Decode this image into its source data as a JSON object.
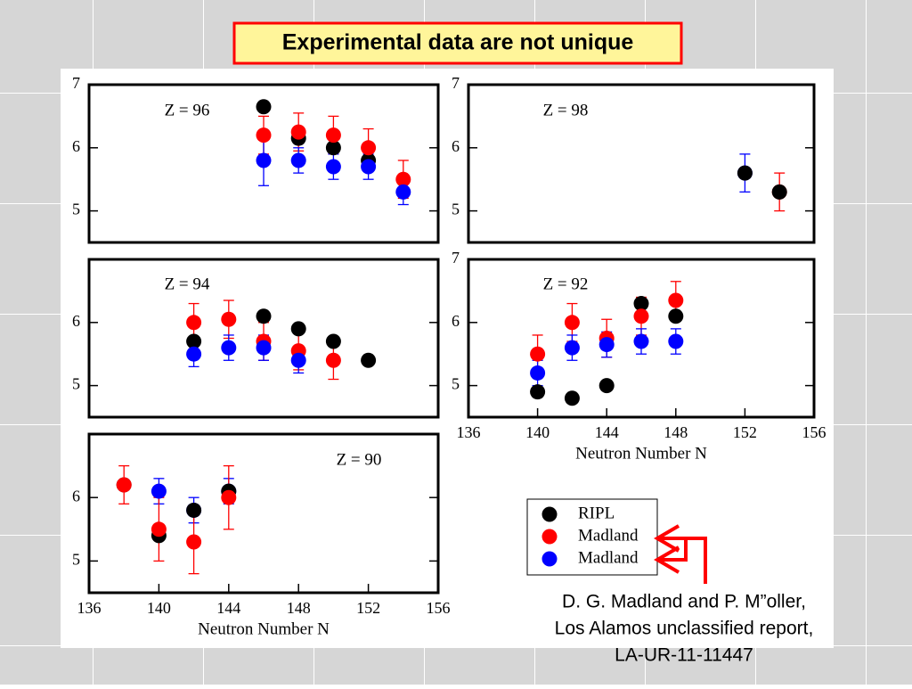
{
  "title": "Experimental data are not unique",
  "chart_data": [
    {
      "type": "scatter",
      "title": "Z = 96",
      "xlim": [
        136,
        156
      ],
      "ylim": [
        4.5,
        7
      ],
      "yticks": [
        5,
        6,
        7
      ],
      "series": [
        {
          "color": "#000000",
          "x": [
            146,
            148,
            150,
            152
          ],
          "values": [
            6.65,
            6.15,
            6.0,
            5.8
          ]
        },
        {
          "color": "#ff0000",
          "x": [
            146,
            148,
            150,
            152,
            154
          ],
          "values": [
            6.2,
            6.25,
            6.2,
            6.0,
            5.5
          ],
          "errors": [
            0.3,
            0.3,
            0.3,
            0.3,
            0.3
          ]
        },
        {
          "color": "#0000ff",
          "x": [
            146,
            148,
            150,
            152,
            154
          ],
          "values": [
            5.8,
            5.8,
            5.7,
            5.7,
            5.3
          ],
          "errors": [
            0.4,
            0.2,
            0.2,
            0.2,
            0.2
          ]
        }
      ]
    },
    {
      "type": "scatter",
      "title": "Z = 98",
      "xlim": [
        136,
        156
      ],
      "ylim": [
        4.5,
        7
      ],
      "yticks": [
        5,
        6,
        7
      ],
      "series": [
        {
          "color": "#ff0000",
          "x": [
            154
          ],
          "values": [
            5.3
          ],
          "errors": [
            0.3
          ]
        },
        {
          "color": "#0000ff",
          "x": [
            152
          ],
          "values": [
            5.6
          ],
          "errors": [
            0.3
          ]
        },
        {
          "color": "#000000",
          "x": [
            152,
            154
          ],
          "values": [
            5.6,
            5.3
          ]
        }
      ]
    },
    {
      "type": "scatter",
      "title": "Z = 94",
      "xlim": [
        136,
        156
      ],
      "ylim": [
        4.5,
        7
      ],
      "yticks": [
        5,
        6
      ],
      "series": [
        {
          "color": "#000000",
          "x": [
            142,
            146,
            148,
            150,
            152
          ],
          "values": [
            5.7,
            6.1,
            5.9,
            5.7,
            5.4
          ]
        },
        {
          "color": "#ff0000",
          "x": [
            142,
            144,
            146,
            148,
            150
          ],
          "values": [
            6.0,
            6.05,
            5.7,
            5.55,
            5.4
          ],
          "errors": [
            0.3,
            0.3,
            0.3,
            0.3,
            0.3
          ]
        },
        {
          "color": "#0000ff",
          "x": [
            142,
            144,
            146,
            148
          ],
          "values": [
            5.5,
            5.6,
            5.6,
            5.4
          ],
          "errors": [
            0.2,
            0.2,
            0.2,
            0.2
          ]
        }
      ]
    },
    {
      "type": "scatter",
      "title": "Z = 92",
      "xlabel": "Neutron Number N",
      "xlim": [
        136,
        156
      ],
      "xticks": [
        136,
        140,
        144,
        148,
        152,
        156
      ],
      "ylim": [
        4.5,
        7
      ],
      "yticks": [
        5,
        6,
        7
      ],
      "series": [
        {
          "color": "#000000",
          "x": [
            140,
            142,
            144,
            146,
            148
          ],
          "values": [
            4.9,
            4.8,
            5.0,
            6.3,
            6.1
          ]
        },
        {
          "color": "#ff0000",
          "x": [
            140,
            142,
            144,
            146,
            148
          ],
          "values": [
            5.5,
            6.0,
            5.75,
            6.1,
            6.35
          ],
          "errors": [
            0.3,
            0.3,
            0.3,
            0.3,
            0.3
          ]
        },
        {
          "color": "#0000ff",
          "x": [
            140,
            142,
            144,
            146,
            148
          ],
          "values": [
            5.2,
            5.6,
            5.65,
            5.7,
            5.7
          ],
          "errors": [
            0.2,
            0.2,
            0.2,
            0.2,
            0.2
          ]
        }
      ]
    },
    {
      "type": "scatter",
      "title": "Z = 90",
      "xlabel": "Neutron Number N",
      "xlim": [
        136,
        156
      ],
      "xticks": [
        136,
        140,
        144,
        148,
        152,
        156
      ],
      "ylim": [
        4.5,
        7
      ],
      "yticks": [
        5,
        6
      ],
      "series": [
        {
          "color": "#0000ff",
          "x": [
            140,
            142,
            144
          ],
          "values": [
            6.1,
            5.8,
            6.1
          ],
          "errors": [
            0.2,
            0.2,
            0.2
          ]
        },
        {
          "color": "#000000",
          "x": [
            138,
            140,
            142,
            144
          ],
          "values": [
            6.2,
            5.4,
            5.8,
            6.1
          ]
        },
        {
          "color": "#ff0000",
          "x": [
            138,
            140,
            142,
            144
          ],
          "values": [
            6.2,
            5.5,
            5.3,
            6.0
          ],
          "errors": [
            0.3,
            0.5,
            0.5,
            0.5
          ]
        }
      ]
    }
  ],
  "legend": [
    {
      "name": "RIPL",
      "color": "#000000"
    },
    {
      "name": "Madland",
      "color": "#ff0000"
    },
    {
      "name": "Madland",
      "color": "#0000ff"
    }
  ],
  "citation": [
    "D. G. Madland and P. M”oller,",
    "Los Alamos unclassified report,",
    "LA-UR-11-11447"
  ]
}
